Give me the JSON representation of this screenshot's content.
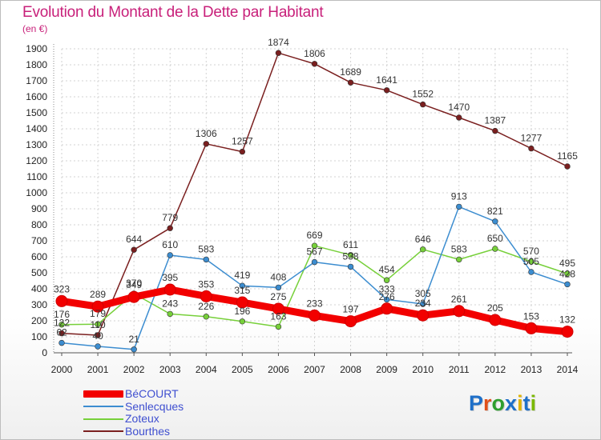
{
  "title": "Evolution du Montant de la Dette par Habitant",
  "unit": "(en €)",
  "logo": {
    "text": "Proxiti",
    "letters": [
      "P",
      "r",
      "o",
      "x",
      "i",
      "t",
      "i"
    ],
    "colors": [
      "#1e6fc8",
      "#e0501a",
      "#2f9e2f",
      "#1e6fc8",
      "#e0b400",
      "#1e6fc8",
      "#7ab800"
    ]
  },
  "chart_data": {
    "type": "line",
    "title": "Evolution du Montant de la Dette par Habitant",
    "ylabel": "(en €)",
    "xlabel": "",
    "ylim": [
      0,
      1900
    ],
    "yticks": [
      0,
      100,
      200,
      300,
      400,
      500,
      600,
      700,
      800,
      900,
      1000,
      1100,
      1200,
      1300,
      1400,
      1500,
      1600,
      1700,
      1800,
      1900
    ],
    "x": [
      2000,
      2001,
      2002,
      2003,
      2004,
      2005,
      2006,
      2007,
      2008,
      2009,
      2010,
      2011,
      2012,
      2013,
      2014
    ],
    "series": [
      {
        "name": "BéCOURT",
        "color": "#f20000",
        "values": [
          323,
          289,
          349,
          395,
          353,
          315,
          275,
          233,
          197,
          276,
          234,
          261,
          205,
          153,
          132
        ]
      },
      {
        "name": "Senlecques",
        "color": "#3c8dd0",
        "values": [
          62,
          40,
          21,
          610,
          583,
          419,
          408,
          567,
          538,
          333,
          305,
          913,
          821,
          505,
          428
        ]
      },
      {
        "name": "Zoteux",
        "color": "#77d03a",
        "values": [
          176,
          179,
          370,
          243,
          226,
          196,
          163,
          669,
          611,
          454,
          646,
          583,
          650,
          570,
          495
        ]
      },
      {
        "name": "Bourthes",
        "color": "#7a1f1f",
        "values": [
          122,
          110,
          644,
          779,
          1306,
          1257,
          1874,
          1806,
          1689,
          1641,
          1552,
          1470,
          1387,
          1277,
          1165
        ]
      }
    ],
    "legend": [
      "BéCOURT",
      "Senlecques",
      "Zoteux",
      "Bourthes"
    ],
    "legend_position": "bottom-left"
  }
}
